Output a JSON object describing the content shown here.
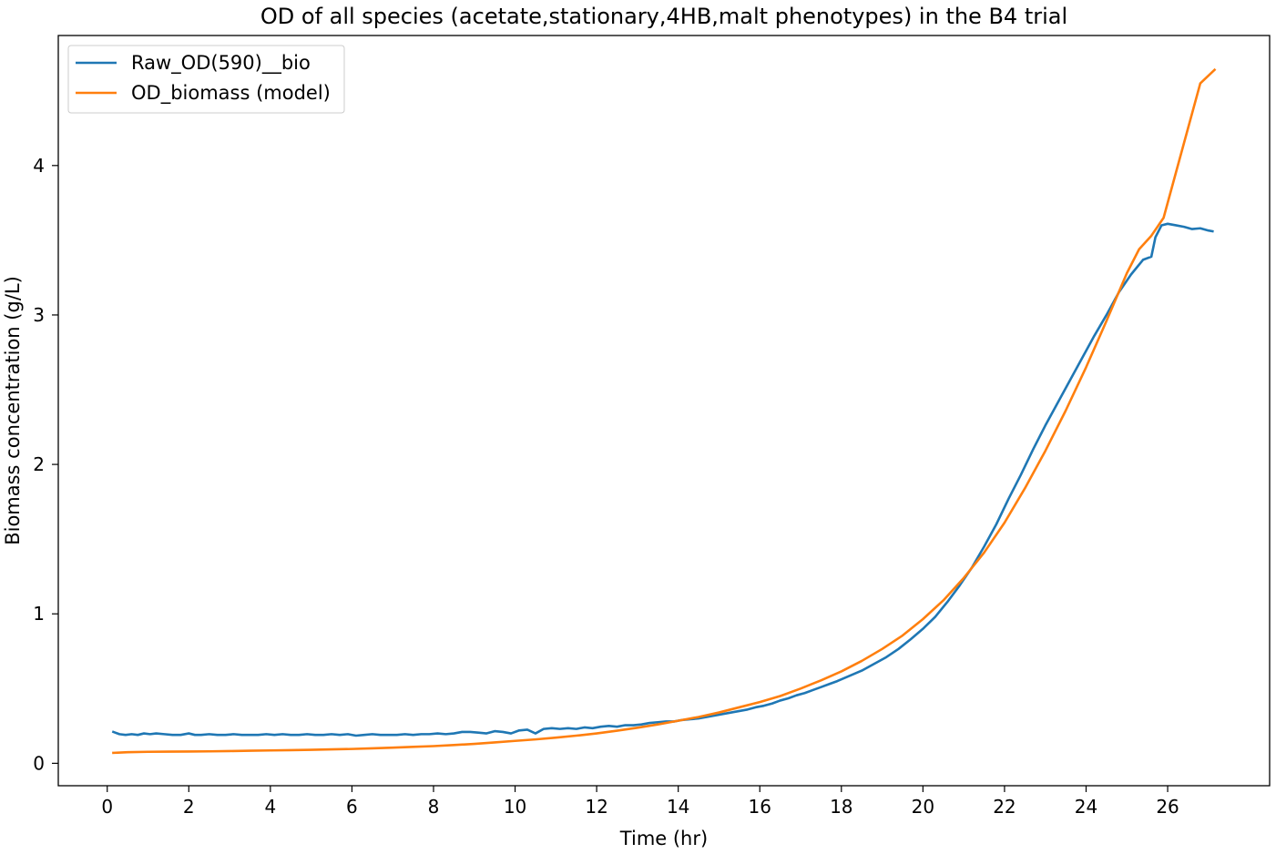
{
  "chart_data": {
    "type": "line",
    "title": "OD of all species (acetate,stationary,4HB,malt phenotypes) in the B4 trial",
    "xlabel": "Time (hr)",
    "ylabel": "Biomass concentration (g/L)",
    "xlim": [
      -1.2,
      28.5
    ],
    "ylim": [
      -0.15,
      4.87
    ],
    "xticks": [
      0,
      2,
      4,
      6,
      8,
      10,
      12,
      14,
      16,
      18,
      20,
      22,
      24,
      26
    ],
    "yticks": [
      0,
      1,
      2,
      3,
      4
    ],
    "grid": false,
    "legend_position": "top-left",
    "series": [
      {
        "name": "Raw_OD(590)__bio",
        "color": "#1f77b4",
        "x": [
          0.15,
          0.3,
          0.45,
          0.6,
          0.75,
          0.9,
          1.05,
          1.2,
          1.4,
          1.6,
          1.8,
          2.0,
          2.15,
          2.3,
          2.5,
          2.7,
          2.9,
          3.1,
          3.3,
          3.5,
          3.7,
          3.9,
          4.1,
          4.3,
          4.5,
          4.7,
          4.9,
          5.1,
          5.3,
          5.5,
          5.7,
          5.9,
          6.1,
          6.3,
          6.5,
          6.7,
          6.9,
          7.1,
          7.3,
          7.5,
          7.7,
          7.9,
          8.1,
          8.3,
          8.5,
          8.7,
          8.9,
          9.1,
          9.3,
          9.5,
          9.7,
          9.9,
          10.1,
          10.3,
          10.5,
          10.7,
          10.9,
          11.1,
          11.3,
          11.5,
          11.7,
          11.9,
          12.1,
          12.3,
          12.5,
          12.7,
          12.9,
          13.1,
          13.3,
          13.5,
          13.7,
          13.9,
          14.1,
          14.3,
          14.5,
          14.7,
          14.9,
          15.1,
          15.3,
          15.5,
          15.7,
          15.9,
          16.1,
          16.3,
          16.5,
          16.7,
          16.9,
          17.1,
          17.3,
          17.5,
          17.7,
          17.9,
          18.2,
          18.5,
          18.8,
          19.1,
          19.4,
          19.7,
          20.0,
          20.3,
          20.6,
          20.9,
          21.2,
          21.5,
          21.8,
          22.1,
          22.4,
          22.7,
          23.0,
          23.3,
          23.6,
          23.9,
          24.2,
          24.5,
          24.8,
          25.1,
          25.4,
          25.6,
          25.7,
          25.85,
          26.0,
          26.2,
          26.4,
          26.6,
          26.8,
          27.0,
          27.1
        ],
        "values": [
          0.21,
          0.195,
          0.19,
          0.195,
          0.19,
          0.2,
          0.195,
          0.2,
          0.195,
          0.19,
          0.19,
          0.2,
          0.19,
          0.19,
          0.195,
          0.19,
          0.19,
          0.195,
          0.19,
          0.19,
          0.19,
          0.195,
          0.19,
          0.195,
          0.19,
          0.19,
          0.195,
          0.19,
          0.19,
          0.195,
          0.19,
          0.195,
          0.185,
          0.19,
          0.195,
          0.19,
          0.19,
          0.19,
          0.195,
          0.19,
          0.195,
          0.195,
          0.2,
          0.195,
          0.2,
          0.21,
          0.21,
          0.205,
          0.2,
          0.215,
          0.21,
          0.2,
          0.22,
          0.225,
          0.2,
          0.23,
          0.235,
          0.23,
          0.235,
          0.23,
          0.24,
          0.235,
          0.245,
          0.25,
          0.245,
          0.255,
          0.255,
          0.26,
          0.27,
          0.275,
          0.28,
          0.28,
          0.29,
          0.295,
          0.3,
          0.31,
          0.32,
          0.33,
          0.34,
          0.35,
          0.36,
          0.375,
          0.385,
          0.4,
          0.42,
          0.435,
          0.455,
          0.47,
          0.49,
          0.51,
          0.53,
          0.55,
          0.585,
          0.62,
          0.665,
          0.71,
          0.765,
          0.83,
          0.9,
          0.98,
          1.08,
          1.19,
          1.31,
          1.45,
          1.6,
          1.77,
          1.93,
          2.1,
          2.26,
          2.41,
          2.56,
          2.71,
          2.86,
          3.0,
          3.15,
          3.27,
          3.37,
          3.39,
          3.52,
          3.6,
          3.61,
          3.6,
          3.59,
          3.575,
          3.58,
          3.565,
          3.56
        ]
      },
      {
        "name": "OD_biomass (model)",
        "color": "#ff7f0e",
        "x": [
          0.15,
          0.5,
          1.0,
          1.5,
          2.0,
          2.5,
          3.0,
          3.5,
          4.0,
          4.5,
          5.0,
          5.5,
          6.0,
          6.5,
          7.0,
          7.5,
          8.0,
          8.5,
          9.0,
          9.5,
          10.0,
          10.5,
          11.0,
          11.5,
          12.0,
          12.5,
          13.0,
          13.5,
          14.0,
          14.5,
          15.0,
          15.5,
          16.0,
          16.5,
          17.0,
          17.5,
          18.0,
          18.5,
          19.0,
          19.5,
          20.0,
          20.5,
          21.0,
          21.5,
          22.0,
          22.5,
          23.0,
          23.5,
          24.0,
          24.5,
          25.0,
          25.3,
          25.6,
          25.9,
          26.2,
          26.5,
          26.8,
          27.15
        ],
        "values": [
          0.07,
          0.074,
          0.077,
          0.078,
          0.079,
          0.08,
          0.082,
          0.084,
          0.086,
          0.088,
          0.09,
          0.093,
          0.096,
          0.1,
          0.105,
          0.11,
          0.115,
          0.122,
          0.13,
          0.14,
          0.15,
          0.16,
          0.172,
          0.185,
          0.2,
          0.218,
          0.238,
          0.26,
          0.285,
          0.31,
          0.34,
          0.375,
          0.41,
          0.45,
          0.5,
          0.555,
          0.615,
          0.685,
          0.765,
          0.855,
          0.965,
          1.09,
          1.24,
          1.41,
          1.61,
          1.84,
          2.09,
          2.36,
          2.65,
          2.96,
          3.28,
          3.44,
          3.53,
          3.65,
          3.95,
          4.25,
          4.55,
          4.64
        ]
      }
    ]
  }
}
